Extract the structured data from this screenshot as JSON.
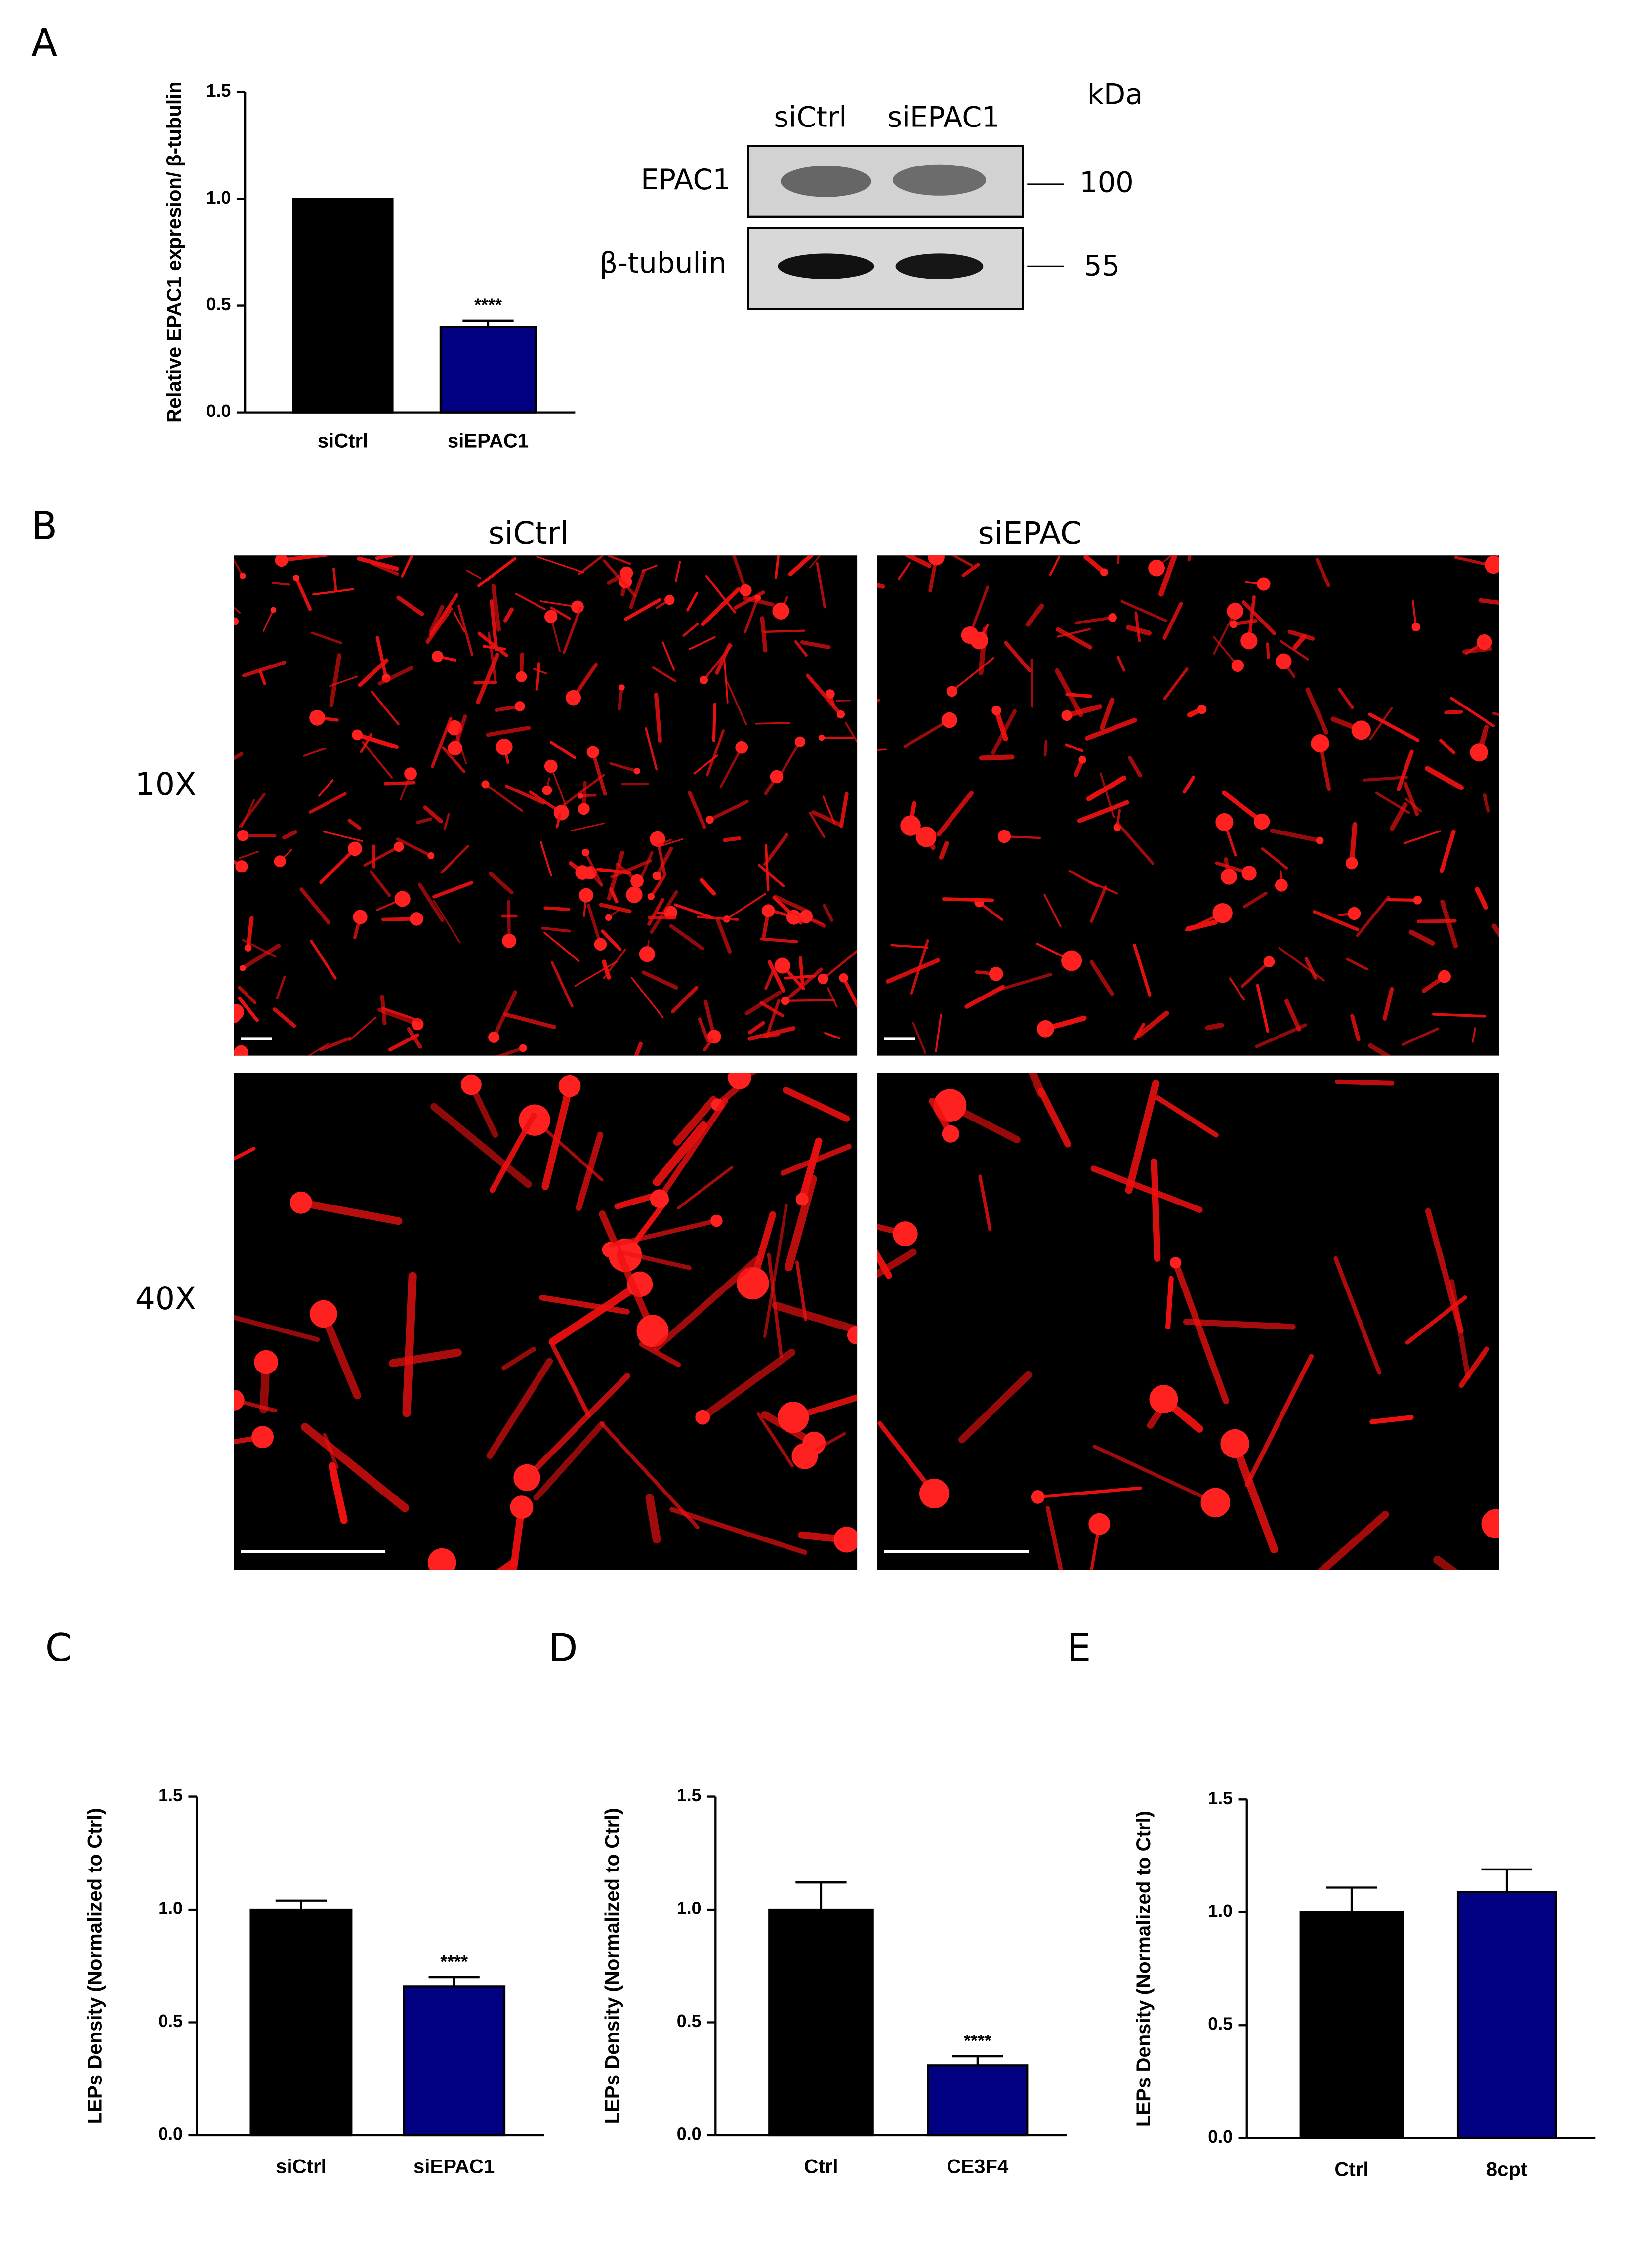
{
  "panels": [
    "A",
    "B",
    "C",
    "D",
    "E"
  ],
  "blot": {
    "lanes": [
      "siCtrl",
      "siEPAC1"
    ],
    "unit": "kDa",
    "proteins": [
      "EPAC1",
      "β-tubulin"
    ],
    "sizes": [
      "100",
      "55"
    ]
  },
  "micrographs": {
    "conditions": [
      "siCtrl",
      "siEPAC"
    ],
    "magnifications": [
      "10X",
      "40X"
    ]
  },
  "chart_data": [
    {
      "type": "bar",
      "ylabel": "Relative EPAC1 expresion/ β-tubulin",
      "categories": [
        "siCtrl",
        "siEPAC1"
      ],
      "values": [
        1.0,
        0.4
      ],
      "errors": [
        0,
        0.03
      ],
      "significance": [
        null,
        "****"
      ],
      "colors": [
        "#000000",
        "#000080"
      ],
      "ylim": [
        0,
        1.5
      ],
      "yticks": [
        {
          "value": 0,
          "label": "0.0"
        },
        0.5,
        {
          "value": 1,
          "label": "1.0"
        },
        1.5
      ]
    },
    {
      "type": "bar",
      "ylabel": "LEPs Density (Normalized to Ctrl)",
      "categories": [
        "siCtrl",
        "siEPAC1"
      ],
      "values": [
        1.0,
        0.66
      ],
      "errors": [
        0.04,
        0.04
      ],
      "significance": [
        null,
        "****"
      ],
      "colors": [
        "#000000",
        "#000080"
      ],
      "ylim": [
        0,
        1.5
      ],
      "yticks": [
        {
          "value": 0,
          "label": "0.0"
        },
        0.5,
        {
          "value": 1,
          "label": "1.0"
        },
        1.5
      ]
    },
    {
      "type": "bar",
      "ylabel": "LEPs Density (Normalized to Ctrl)",
      "categories": [
        "Ctrl",
        "CE3F4"
      ],
      "values": [
        1.0,
        0.31
      ],
      "errors": [
        0.12,
        0.04
      ],
      "significance": [
        null,
        "****"
      ],
      "colors": [
        "#000000",
        "#000080"
      ],
      "ylim": [
        0,
        1.5
      ],
      "yticks": [
        {
          "value": 0,
          "label": "0.0"
        },
        0.5,
        {
          "value": 1,
          "label": "1.0"
        },
        1.5
      ]
    },
    {
      "type": "bar",
      "ylabel": "LEPs Density (Normalized to Ctrl)",
      "categories": [
        "Ctrl",
        "8cpt"
      ],
      "values": [
        1.0,
        1.09
      ],
      "errors": [
        0.11,
        0.1
      ],
      "significance": [
        null,
        null
      ],
      "colors": [
        "#000000",
        "#000080"
      ],
      "ylim": [
        0,
        1.5
      ],
      "yticks": [
        {
          "value": 0,
          "label": "0.0"
        },
        0.5,
        {
          "value": 1,
          "label": "1.0"
        },
        1.5
      ]
    }
  ]
}
